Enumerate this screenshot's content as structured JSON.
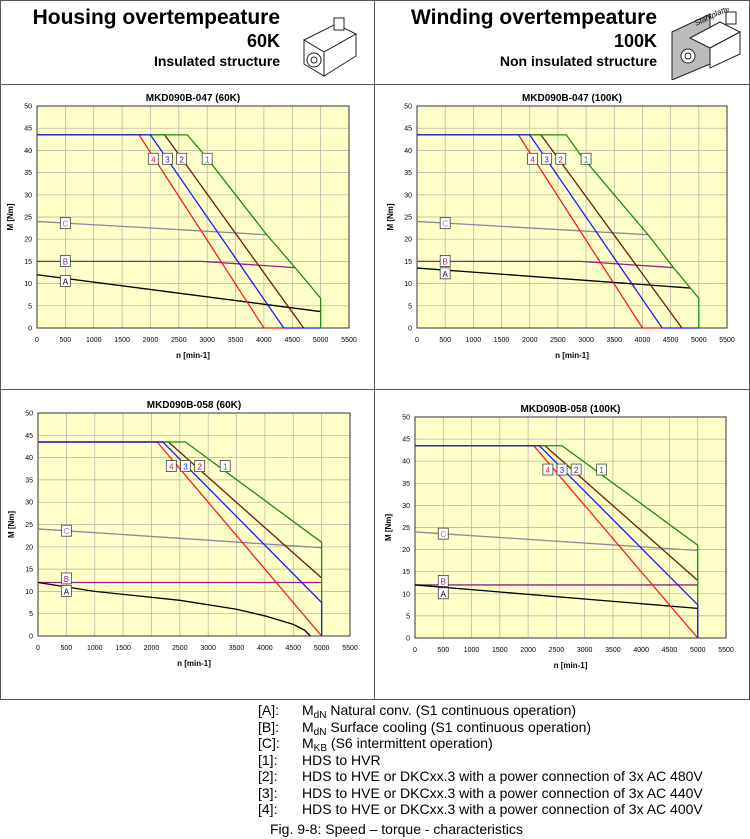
{
  "header": {
    "left": {
      "title": "Housing overtempeature",
      "temp": "60K",
      "structure": "Insulated structure"
    },
    "right": {
      "title": "Winding overtempeature",
      "temp": "100K",
      "structure": "Non insulated structure",
      "plate_label": "Stahlplatte"
    }
  },
  "colors": {
    "1": "#1a8a1a",
    "2": "#6b1a10",
    "3": "#1a1aff",
    "4": "#ff1a1a",
    "A": "#000000",
    "B": "#9a1a8a",
    "C": "#8a8a9a",
    "plot_bg": "#ffffc8"
  },
  "chart_data": [
    {
      "type": "line",
      "title": "MKD090B-047 (60K)",
      "xlabel": "n [min-1]",
      "ylabel": "M [Nm]",
      "xlim": [
        0,
        5500
      ],
      "ylim": [
        0,
        50
      ],
      "xticks": [
        0,
        500,
        1000,
        1500,
        2000,
        2500,
        3000,
        3500,
        4000,
        4500,
        5000,
        5500
      ],
      "yticks": [
        0,
        5,
        10,
        15,
        20,
        25,
        30,
        35,
        40,
        45,
        50
      ],
      "grid": true,
      "series": [
        {
          "name": "C",
          "points": [
            [
              0,
              24
            ],
            [
              4050,
              21
            ]
          ],
          "label_at": [
            500,
            23.5
          ]
        },
        {
          "name": "B",
          "points": [
            [
              0,
              15
            ],
            [
              2900,
              15
            ],
            [
              4550,
              13.6
            ]
          ],
          "label_at": [
            500,
            15
          ]
        },
        {
          "name": "A",
          "points": [
            [
              0,
              12
            ],
            [
              5000,
              3.7
            ]
          ],
          "label_at": [
            500,
            10.5
          ]
        },
        {
          "name": "4",
          "points": [
            [
              0,
              43.5
            ],
            [
              1800,
              43.5
            ],
            [
              4000,
              0
            ],
            [
              4350,
              0
            ]
          ],
          "label_at": [
            2050,
            38
          ]
        },
        {
          "name": "2",
          "points": [
            [
              0,
              43.5
            ],
            [
              2250,
              43.5
            ],
            [
              4700,
              0
            ]
          ],
          "label_at": [
            2550,
            38
          ]
        },
        {
          "name": "1",
          "points": [
            [
              0,
              43.5
            ],
            [
              2650,
              43.5
            ],
            [
              2950,
              39
            ],
            [
              4050,
              21
            ],
            [
              4550,
              13.6
            ],
            [
              5000,
              6.7
            ],
            [
              5000,
              0
            ]
          ],
          "label_at": [
            3000,
            38
          ]
        },
        {
          "name": "3",
          "points": [
            [
              0,
              43.5
            ],
            [
              2000,
              43.5
            ],
            [
              4350,
              0
            ],
            [
              5000,
              0
            ]
          ],
          "label_at": [
            2300,
            38
          ]
        }
      ]
    },
    {
      "type": "line",
      "title": "MKD090B-047 (100K)",
      "xlabel": "n [min-1]",
      "ylabel": "M [Nm]",
      "xlim": [
        0,
        5500
      ],
      "ylim": [
        0,
        50
      ],
      "xticks": [
        0,
        500,
        1000,
        1500,
        2000,
        2500,
        3000,
        3500,
        4000,
        4500,
        5000,
        5500
      ],
      "yticks": [
        0,
        5,
        10,
        15,
        20,
        25,
        30,
        35,
        40,
        45,
        50
      ],
      "grid": true,
      "series": [
        {
          "name": "C",
          "points": [
            [
              0,
              24
            ],
            [
              4100,
              21
            ]
          ],
          "label_at": [
            500,
            23.5
          ]
        },
        {
          "name": "B",
          "points": [
            [
              0,
              15
            ],
            [
              2900,
              15
            ],
            [
              4550,
              13.6
            ]
          ],
          "label_at": [
            500,
            15
          ]
        },
        {
          "name": "A",
          "points": [
            [
              0,
              13.5
            ],
            [
              4850,
              9
            ]
          ],
          "label_at": [
            500,
            12.2
          ]
        },
        {
          "name": "4",
          "points": [
            [
              0,
              43.5
            ],
            [
              1800,
              43.5
            ],
            [
              4000,
              0
            ],
            [
              4350,
              0
            ]
          ],
          "label_at": [
            2050,
            38
          ]
        },
        {
          "name": "2",
          "points": [
            [
              0,
              43.5
            ],
            [
              2200,
              43.5
            ],
            [
              4700,
              0
            ]
          ],
          "label_at": [
            2550,
            38
          ]
        },
        {
          "name": "1",
          "points": [
            [
              0,
              43.5
            ],
            [
              2650,
              43.5
            ],
            [
              2900,
              39
            ],
            [
              4100,
              21
            ],
            [
              4550,
              13.6
            ],
            [
              5000,
              6.7
            ],
            [
              5000,
              0
            ]
          ],
          "label_at": [
            3000,
            38
          ]
        },
        {
          "name": "3",
          "points": [
            [
              0,
              43.5
            ],
            [
              2000,
              43.5
            ],
            [
              4350,
              0
            ],
            [
              5000,
              0
            ]
          ],
          "label_at": [
            2300,
            38
          ]
        }
      ]
    },
    {
      "type": "line",
      "title": "MKD090B-058 (60K)",
      "xlabel": "n [min-1]",
      "ylabel": "M [Nm]",
      "xlim": [
        0,
        5500
      ],
      "ylim": [
        0,
        50
      ],
      "xticks": [
        0,
        500,
        1000,
        1500,
        2000,
        2500,
        3000,
        3500,
        4000,
        4500,
        5000,
        5500
      ],
      "yticks": [
        0,
        5,
        10,
        15,
        20,
        25,
        30,
        35,
        40,
        45,
        50
      ],
      "grid": true,
      "series": [
        {
          "name": "C",
          "points": [
            [
              0,
              24
            ],
            [
              5000,
              19.8
            ]
          ],
          "label_at": [
            500,
            23.5
          ]
        },
        {
          "name": "B",
          "points": [
            [
              0,
              12
            ],
            [
              5000,
              12
            ]
          ],
          "label_at": [
            500,
            12.8
          ]
        },
        {
          "name": "A",
          "points": [
            [
              0,
              12
            ],
            [
              1000,
              10
            ],
            [
              2500,
              8
            ],
            [
              3500,
              6
            ],
            [
              4000,
              4.5
            ],
            [
              4500,
              2.6
            ],
            [
              4700,
              1.3
            ],
            [
              4800,
              0
            ]
          ],
          "label_at": [
            500,
            10
          ]
        },
        {
          "name": "4",
          "points": [
            [
              0,
              43.5
            ],
            [
              2100,
              43.5
            ],
            [
              5000,
              0
            ]
          ],
          "label_at": [
            2350,
            38
          ]
        },
        {
          "name": "2",
          "points": [
            [
              0,
              43.5
            ],
            [
              2300,
              43.5
            ],
            [
              5000,
              13
            ]
          ],
          "label_at": [
            2850,
            38
          ]
        },
        {
          "name": "1",
          "points": [
            [
              0,
              43.5
            ],
            [
              2600,
              43.5
            ],
            [
              5000,
              21
            ],
            [
              5000,
              0
            ]
          ],
          "label_at": [
            3300,
            38
          ]
        },
        {
          "name": "3",
          "points": [
            [
              0,
              43.5
            ],
            [
              2200,
              43.5
            ],
            [
              5000,
              7.5
            ],
            [
              5000,
              0
            ]
          ],
          "label_at": [
            2600,
            38
          ]
        }
      ]
    },
    {
      "type": "line",
      "title": "MKD090B-058 (100K)",
      "xlabel": "n [min-1]",
      "ylabel": "M [Nm]",
      "xlim": [
        0,
        5500
      ],
      "ylim": [
        0,
        50
      ],
      "xticks": [
        0,
        500,
        1000,
        1500,
        2000,
        2500,
        3000,
        3500,
        4000,
        4500,
        5000,
        5500
      ],
      "yticks": [
        0,
        5,
        10,
        15,
        20,
        25,
        30,
        35,
        40,
        45,
        50
      ],
      "grid": true,
      "series": [
        {
          "name": "C",
          "points": [
            [
              0,
              24
            ],
            [
              5000,
              19.8
            ]
          ],
          "label_at": [
            500,
            23.5
          ]
        },
        {
          "name": "B",
          "points": [
            [
              0,
              12
            ],
            [
              5000,
              12
            ]
          ],
          "label_at": [
            500,
            12.8
          ]
        },
        {
          "name": "A",
          "points": [
            [
              0,
              12
            ],
            [
              5000,
              6.7
            ]
          ],
          "label_at": [
            500,
            10
          ]
        },
        {
          "name": "4",
          "points": [
            [
              0,
              43.5
            ],
            [
              2100,
              43.5
            ],
            [
              5000,
              0
            ]
          ],
          "label_at": [
            2350,
            38
          ]
        },
        {
          "name": "2",
          "points": [
            [
              0,
              43.5
            ],
            [
              2300,
              43.5
            ],
            [
              5000,
              13
            ]
          ],
          "label_at": [
            2850,
            38
          ]
        },
        {
          "name": "1",
          "points": [
            [
              0,
              43.5
            ],
            [
              2600,
              43.5
            ],
            [
              5000,
              21
            ],
            [
              5000,
              0
            ]
          ],
          "label_at": [
            3300,
            38
          ]
        },
        {
          "name": "3",
          "points": [
            [
              0,
              43.5
            ],
            [
              2200,
              43.5
            ],
            [
              5000,
              7.5
            ],
            [
              5000,
              0
            ]
          ],
          "label_at": [
            2600,
            38
          ]
        }
      ]
    }
  ],
  "legend": [
    {
      "key": "[A]:",
      "sym": "M",
      "sub": "dN",
      "text": " Natural conv. (S1 continuous operation)"
    },
    {
      "key": "[B]:",
      "sym": "M",
      "sub": "dN",
      "text": " Surface cooling (S1 continuous operation)"
    },
    {
      "key": "[C]:",
      "sym": "M",
      "sub": "KB",
      "text": " (S6 intermittent operation)"
    },
    {
      "key": "[1]:",
      "sym": "",
      "sub": "",
      "text": "HDS to HVR"
    },
    {
      "key": "[2]:",
      "sym": "",
      "sub": "",
      "text": "HDS to HVE or DKCxx.3 with a power connection of 3x AC 480V"
    },
    {
      "key": "[3]:",
      "sym": "",
      "sub": "",
      "text": "HDS to HVE or DKCxx.3 with a power connection of 3x AC 440V"
    },
    {
      "key": "[4]:",
      "sym": "",
      "sub": "",
      "text": "HDS to HVE or DKCxx.3 with a power connection of 3x AC 400V"
    }
  ],
  "caption": "Fig. 9-8: Speed – torque - characteristics"
}
